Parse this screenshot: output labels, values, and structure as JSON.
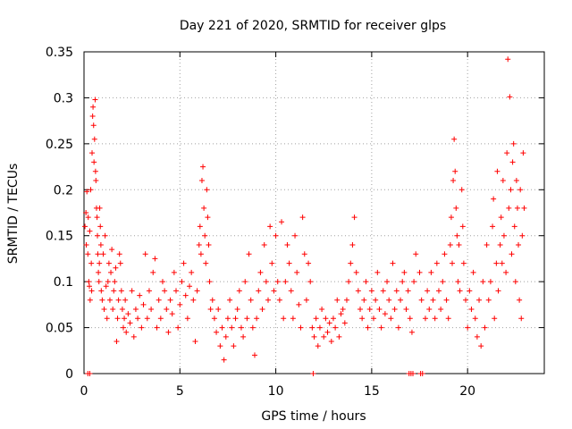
{
  "chart_data": {
    "type": "scatter",
    "title": "Day 221 of 2020, SRMTID for receiver glps",
    "xlabel": "GPS time / hours",
    "ylabel": "SRMTID / TECUs",
    "xlim": [
      0,
      24
    ],
    "ylim": [
      0,
      0.35
    ],
    "xticks": [
      0,
      5,
      10,
      15,
      20
    ],
    "xtick_labels": [
      "0",
      "5",
      "10",
      "15",
      "20"
    ],
    "yticks": [
      0,
      0.05,
      0.1,
      0.15,
      0.2,
      0.25,
      0.3,
      0.35
    ],
    "ytick_labels": [
      "0",
      "0.05",
      "0.1",
      "0.15",
      "0.2",
      "0.25",
      "0.3",
      "0.35"
    ],
    "grid": true,
    "marker": "+",
    "color": "#ff0000",
    "series": [
      {
        "name": "SRMTID",
        "note": "representative sample of the dense scatter",
        "points": [
          [
            0.05,
            0.16
          ],
          [
            0.1,
            0.175
          ],
          [
            0.12,
            0.14
          ],
          [
            0.15,
            0.198
          ],
          [
            0.2,
            0.13
          ],
          [
            0.22,
            0.17
          ],
          [
            0.25,
            0.1
          ],
          [
            0.28,
            0.095
          ],
          [
            0.3,
            0.155
          ],
          [
            0.32,
            0.08
          ],
          [
            0.35,
            0.2
          ],
          [
            0.38,
            0.12
          ],
          [
            0.4,
            0.09
          ],
          [
            0.42,
            0.24
          ],
          [
            0.45,
            0.28
          ],
          [
            0.47,
            0.29
          ],
          [
            0.5,
            0.27
          ],
          [
            0.52,
            0.23
          ],
          [
            0.55,
            0.255
          ],
          [
            0.58,
            0.298
          ],
          [
            0.6,
            0.22
          ],
          [
            0.62,
            0.21
          ],
          [
            0.65,
            0.18
          ],
          [
            0.68,
            0.17
          ],
          [
            0.7,
            0.15
          ],
          [
            0.72,
            0.13
          ],
          [
            0.75,
            0.11
          ],
          [
            0.78,
            0.1
          ],
          [
            0.8,
            0.12
          ],
          [
            0.82,
            0.18
          ],
          [
            0.85,
            0.16
          ],
          [
            0.88,
            0.14
          ],
          [
            0.9,
            0.09
          ],
          [
            0.95,
            0.08
          ],
          [
            1.0,
            0.13
          ],
          [
            1.05,
            0.07
          ],
          [
            1.1,
            0.15
          ],
          [
            1.15,
            0.095
          ],
          [
            1.2,
            0.06
          ],
          [
            1.25,
            0.1
          ],
          [
            1.3,
            0.12
          ],
          [
            1.35,
            0.08
          ],
          [
            1.4,
            0.11
          ],
          [
            1.45,
            0.135
          ],
          [
            1.5,
            0.07
          ],
          [
            1.55,
            0.09
          ],
          [
            1.6,
            0.1
          ],
          [
            1.65,
            0.115
          ],
          [
            1.7,
            0.035
          ],
          [
            1.75,
            0.06
          ],
          [
            1.8,
            0.08
          ],
          [
            1.85,
            0.13
          ],
          [
            1.9,
            0.12
          ],
          [
            1.95,
            0.09
          ],
          [
            2.0,
            0.07
          ],
          [
            2.05,
            0.05
          ],
          [
            2.1,
            0.06
          ],
          [
            2.15,
            0.08
          ],
          [
            2.2,
            0.045
          ],
          [
            2.3,
            0.065
          ],
          [
            2.4,
            0.055
          ],
          [
            2.5,
            0.09
          ],
          [
            2.6,
            0.04
          ],
          [
            2.7,
            0.07
          ],
          [
            2.8,
            0.06
          ],
          [
            2.9,
            0.085
          ],
          [
            3.0,
            0.05
          ],
          [
            3.1,
            0.075
          ],
          [
            3.2,
            0.13
          ],
          [
            3.3,
            0.06
          ],
          [
            3.4,
            0.09
          ],
          [
            3.5,
            0.07
          ],
          [
            3.6,
            0.11
          ],
          [
            3.7,
            0.125
          ],
          [
            3.8,
            0.05
          ],
          [
            3.9,
            0.08
          ],
          [
            4.0,
            0.06
          ],
          [
            4.1,
            0.1
          ],
          [
            4.2,
            0.09
          ],
          [
            4.3,
            0.07
          ],
          [
            4.4,
            0.045
          ],
          [
            4.5,
            0.08
          ],
          [
            4.6,
            0.065
          ],
          [
            4.7,
            0.11
          ],
          [
            4.8,
            0.09
          ],
          [
            4.9,
            0.05
          ],
          [
            5.0,
            0.075
          ],
          [
            5.1,
            0.1
          ],
          [
            5.2,
            0.12
          ],
          [
            5.3,
            0.085
          ],
          [
            5.4,
            0.06
          ],
          [
            5.5,
            0.095
          ],
          [
            5.6,
            0.11
          ],
          [
            5.7,
            0.08
          ],
          [
            5.8,
            0.035
          ],
          [
            5.9,
            0.09
          ],
          [
            6.0,
            0.14
          ],
          [
            6.05,
            0.16
          ],
          [
            6.1,
            0.13
          ],
          [
            6.15,
            0.21
          ],
          [
            6.2,
            0.225
          ],
          [
            6.25,
            0.18
          ],
          [
            6.3,
            0.15
          ],
          [
            6.35,
            0.12
          ],
          [
            6.4,
            0.2
          ],
          [
            6.45,
            0.17
          ],
          [
            6.5,
            0.14
          ],
          [
            6.55,
            0.1
          ],
          [
            6.6,
            0.07
          ],
          [
            6.7,
            0.08
          ],
          [
            6.8,
            0.06
          ],
          [
            6.9,
            0.045
          ],
          [
            7.0,
            0.07
          ],
          [
            7.1,
            0.03
          ],
          [
            7.2,
            0.05
          ],
          [
            7.3,
            0.015
          ],
          [
            7.4,
            0.04
          ],
          [
            7.5,
            0.06
          ],
          [
            7.6,
            0.08
          ],
          [
            7.7,
            0.05
          ],
          [
            7.8,
            0.03
          ],
          [
            7.9,
            0.06
          ],
          [
            8.0,
            0.07
          ],
          [
            8.1,
            0.09
          ],
          [
            8.2,
            0.05
          ],
          [
            8.3,
            0.04
          ],
          [
            8.4,
            0.1
          ],
          [
            8.5,
            0.06
          ],
          [
            8.6,
            0.13
          ],
          [
            8.7,
            0.08
          ],
          [
            8.8,
            0.05
          ],
          [
            8.9,
            0.02
          ],
          [
            9.0,
            0.06
          ],
          [
            9.1,
            0.09
          ],
          [
            9.2,
            0.11
          ],
          [
            9.3,
            0.07
          ],
          [
            9.4,
            0.14
          ],
          [
            9.5,
            0.1
          ],
          [
            9.6,
            0.08
          ],
          [
            9.7,
            0.16
          ],
          [
            9.8,
            0.12
          ],
          [
            9.9,
            0.09
          ],
          [
            10.0,
            0.15
          ],
          [
            10.1,
            0.1
          ],
          [
            10.2,
            0.08
          ],
          [
            10.3,
            0.165
          ],
          [
            10.4,
            0.06
          ],
          [
            10.5,
            0.1
          ],
          [
            10.6,
            0.14
          ],
          [
            10.7,
            0.12
          ],
          [
            10.8,
            0.09
          ],
          [
            10.9,
            0.06
          ],
          [
            11.0,
            0.15
          ],
          [
            11.1,
            0.11
          ],
          [
            11.2,
            0.075
          ],
          [
            11.3,
            0.05
          ],
          [
            11.4,
            0.17
          ],
          [
            11.5,
            0.13
          ],
          [
            11.6,
            0.08
          ],
          [
            11.7,
            0.12
          ],
          [
            11.8,
            0.1
          ],
          [
            11.9,
            0.05
          ],
          [
            12.0,
            0.04
          ],
          [
            12.1,
            0.06
          ],
          [
            12.2,
            0.03
          ],
          [
            12.3,
            0.05
          ],
          [
            12.4,
            0.07
          ],
          [
            12.5,
            0.04
          ],
          [
            12.6,
            0.06
          ],
          [
            12.7,
            0.045
          ],
          [
            12.8,
            0.055
          ],
          [
            12.9,
            0.035
          ],
          [
            13.0,
            0.06
          ],
          [
            13.1,
            0.05
          ],
          [
            13.2,
            0.08
          ],
          [
            13.3,
            0.04
          ],
          [
            13.4,
            0.065
          ],
          [
            13.5,
            0.07
          ],
          [
            13.6,
            0.055
          ],
          [
            13.7,
            0.08
          ],
          [
            13.8,
            0.1
          ],
          [
            13.9,
            0.12
          ],
          [
            14.0,
            0.14
          ],
          [
            14.1,
            0.17
          ],
          [
            14.2,
            0.11
          ],
          [
            14.3,
            0.09
          ],
          [
            14.4,
            0.07
          ],
          [
            14.5,
            0.06
          ],
          [
            14.6,
            0.08
          ],
          [
            14.7,
            0.1
          ],
          [
            14.8,
            0.05
          ],
          [
            14.9,
            0.07
          ],
          [
            15.0,
            0.09
          ],
          [
            15.1,
            0.06
          ],
          [
            15.2,
            0.08
          ],
          [
            15.3,
            0.11
          ],
          [
            15.4,
            0.07
          ],
          [
            15.5,
            0.05
          ],
          [
            15.6,
            0.09
          ],
          [
            15.7,
            0.065
          ],
          [
            15.8,
            0.1
          ],
          [
            15.9,
            0.08
          ],
          [
            16.0,
            0.06
          ],
          [
            16.1,
            0.12
          ],
          [
            16.2,
            0.07
          ],
          [
            16.3,
            0.09
          ],
          [
            16.4,
            0.05
          ],
          [
            16.5,
            0.08
          ],
          [
            16.6,
            0.1
          ],
          [
            16.7,
            0.11
          ],
          [
            16.8,
            0.07
          ],
          [
            16.9,
            0.09
          ],
          [
            17.0,
            0.06
          ],
          [
            17.1,
            0.045
          ],
          [
            17.2,
            0.1
          ],
          [
            17.3,
            0.13
          ],
          [
            17.5,
            0.11
          ],
          [
            17.6,
            0.08
          ],
          [
            17.8,
            0.06
          ],
          [
            17.9,
            0.09
          ],
          [
            18.0,
            0.07
          ],
          [
            18.1,
            0.11
          ],
          [
            18.2,
            0.08
          ],
          [
            18.3,
            0.06
          ],
          [
            18.4,
            0.12
          ],
          [
            18.5,
            0.09
          ],
          [
            18.6,
            0.07
          ],
          [
            18.7,
            0.1
          ],
          [
            18.8,
            0.13
          ],
          [
            18.9,
            0.08
          ],
          [
            19.0,
            0.06
          ],
          [
            19.1,
            0.14
          ],
          [
            19.15,
            0.17
          ],
          [
            19.2,
            0.12
          ],
          [
            19.25,
            0.21
          ],
          [
            19.3,
            0.255
          ],
          [
            19.35,
            0.22
          ],
          [
            19.4,
            0.18
          ],
          [
            19.45,
            0.15
          ],
          [
            19.5,
            0.1
          ],
          [
            19.55,
            0.14
          ],
          [
            19.6,
            0.09
          ],
          [
            19.7,
            0.2
          ],
          [
            19.75,
            0.16
          ],
          [
            19.8,
            0.12
          ],
          [
            19.9,
            0.08
          ],
          [
            20.0,
            0.05
          ],
          [
            20.1,
            0.09
          ],
          [
            20.2,
            0.07
          ],
          [
            20.3,
            0.11
          ],
          [
            20.4,
            0.06
          ],
          [
            20.5,
            0.04
          ],
          [
            20.6,
            0.08
          ],
          [
            20.7,
            0.03
          ],
          [
            20.8,
            0.1
          ],
          [
            20.9,
            0.05
          ],
          [
            21.0,
            0.14
          ],
          [
            21.1,
            0.08
          ],
          [
            21.2,
            0.1
          ],
          [
            21.3,
            0.16
          ],
          [
            21.35,
            0.19
          ],
          [
            21.4,
            0.06
          ],
          [
            21.5,
            0.12
          ],
          [
            21.55,
            0.22
          ],
          [
            21.6,
            0.09
          ],
          [
            21.7,
            0.14
          ],
          [
            21.75,
            0.17
          ],
          [
            21.8,
            0.12
          ],
          [
            21.85,
            0.21
          ],
          [
            21.9,
            0.15
          ],
          [
            22.0,
            0.11
          ],
          [
            22.05,
            0.24
          ],
          [
            22.1,
            0.342
          ],
          [
            22.15,
            0.18
          ],
          [
            22.2,
            0.301
          ],
          [
            22.25,
            0.2
          ],
          [
            22.3,
            0.13
          ],
          [
            22.35,
            0.23
          ],
          [
            22.4,
            0.25
          ],
          [
            22.45,
            0.16
          ],
          [
            22.5,
            0.1
          ],
          [
            22.55,
            0.21
          ],
          [
            22.6,
            0.18
          ],
          [
            22.65,
            0.14
          ],
          [
            22.7,
            0.08
          ],
          [
            22.75,
            0.2
          ],
          [
            22.8,
            0.06
          ],
          [
            22.85,
            0.15
          ],
          [
            22.9,
            0.24
          ],
          [
            22.95,
            0.18
          ]
        ]
      }
    ],
    "zero_markers_x": [
      0.2,
      0.3,
      11.95,
      16.95,
      17.05,
      17.15,
      17.55,
      17.65
    ]
  }
}
